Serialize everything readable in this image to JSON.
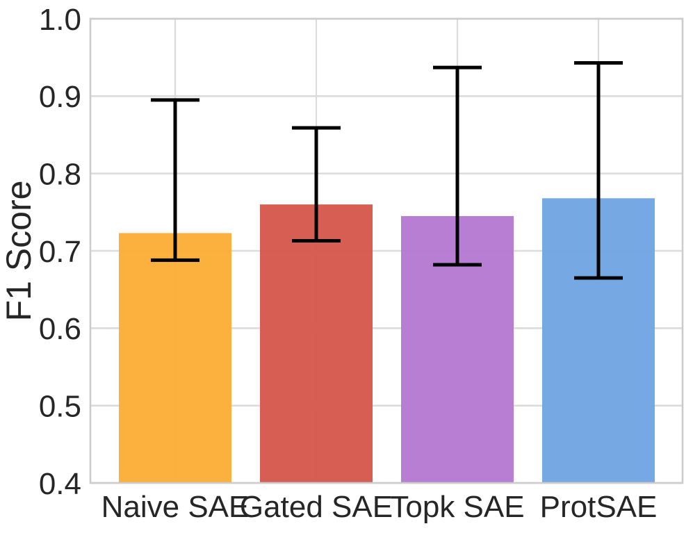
{
  "chart_data": {
    "type": "bar",
    "title": "",
    "xlabel": "",
    "ylabel": "F1 Score",
    "categories": [
      "Naive SAE",
      "Gated SAE",
      "Topk SAE",
      "ProtSAE"
    ],
    "series": [
      {
        "name": "F1 Score",
        "values": [
          0.723,
          0.76,
          0.745,
          0.768
        ],
        "error_high": [
          0.895,
          0.859,
          0.937,
          0.943
        ],
        "error_low": [
          0.688,
          0.713,
          0.682,
          0.665
        ]
      }
    ],
    "bar_colors": [
      "#FCAC34",
      "#D4554A",
      "#B377D2",
      "#6FA3E1"
    ],
    "ylim": [
      0.4,
      1.0
    ],
    "yticks": [
      "0.4",
      "0.5",
      "0.6",
      "0.7",
      "0.8",
      "0.9",
      "1.0"
    ],
    "grid": true,
    "legend_position": "none",
    "colors": {
      "error_bar": "#000000",
      "grid": "#dcdcdc",
      "spine": "#cccccc",
      "text": "#262626",
      "background": "#ffffff"
    }
  }
}
